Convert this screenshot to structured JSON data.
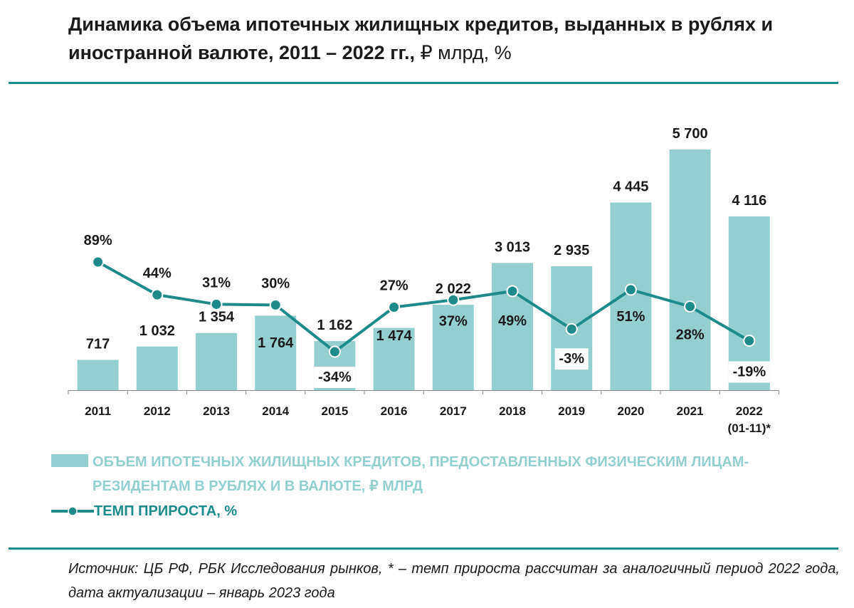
{
  "title": {
    "main": "Динамика объема ипотечных жилищных кредитов, выданных в рублях и иностранной валюте, 2011 – 2022 гг.,",
    "unit": " ₽ млрд, %"
  },
  "legend": {
    "bars_label": "ОБЪЕМ ИПОТЕЧНЫХ ЖИЛИЩНЫХ КРЕДИТОВ, ПРЕДОСТАВЛЕННЫХ ФИЗИЧЕСКИМ ЛИЦАМ-РЕЗИДЕНТАМ В РУБЛЯХ И В ВАЛЮТЕ, ₽ МЛРД",
    "line_label": "ТЕМП ПРИРОСТА, %"
  },
  "source": "Источник: ЦБ РФ, РБК Исследования рынков, * – темп прироста рассчитан за аналогичный период 2022 года, дата актуализации – январь 2023 года",
  "colors": {
    "bar": "#94cfcf",
    "line": "#1f8a8a",
    "rule": "#1f8a8a",
    "text": "#1a1a1a"
  },
  "chart_data": {
    "type": "bar",
    "categories": [
      "2011",
      "2012",
      "2013",
      "2014",
      "2015",
      "2016",
      "2017",
      "2018",
      "2019",
      "2020",
      "2021",
      "2022\n(01-11)*"
    ],
    "series": [
      {
        "type": "bar",
        "axis": "left",
        "values": [
          717,
          1032,
          1354,
          1764,
          1162,
          1474,
          2022,
          3013,
          2935,
          4445,
          5700,
          4116
        ],
        "labels": [
          "717",
          "1 032",
          "1 354",
          "1 764",
          "1 162",
          "1 474",
          "2 022",
          "3 013",
          "2 935",
          "4 445",
          "5 700",
          "4 116"
        ]
      },
      {
        "type": "line",
        "axis": "right",
        "values": [
          89,
          44,
          31,
          30,
          -34,
          27,
          37,
          49,
          -3,
          51,
          28,
          -19
        ],
        "labels": [
          "89%",
          "44%",
          "31%",
          "30%",
          "-34%",
          "27%",
          "37%",
          "49%",
          "-3%",
          "51%",
          "28%",
          "-19%"
        ]
      }
    ],
    "ylim_left": [
      0,
      5900
    ],
    "ylim_right": [
      -70,
      140
    ],
    "grid": false,
    "legend_position": "bottom"
  }
}
